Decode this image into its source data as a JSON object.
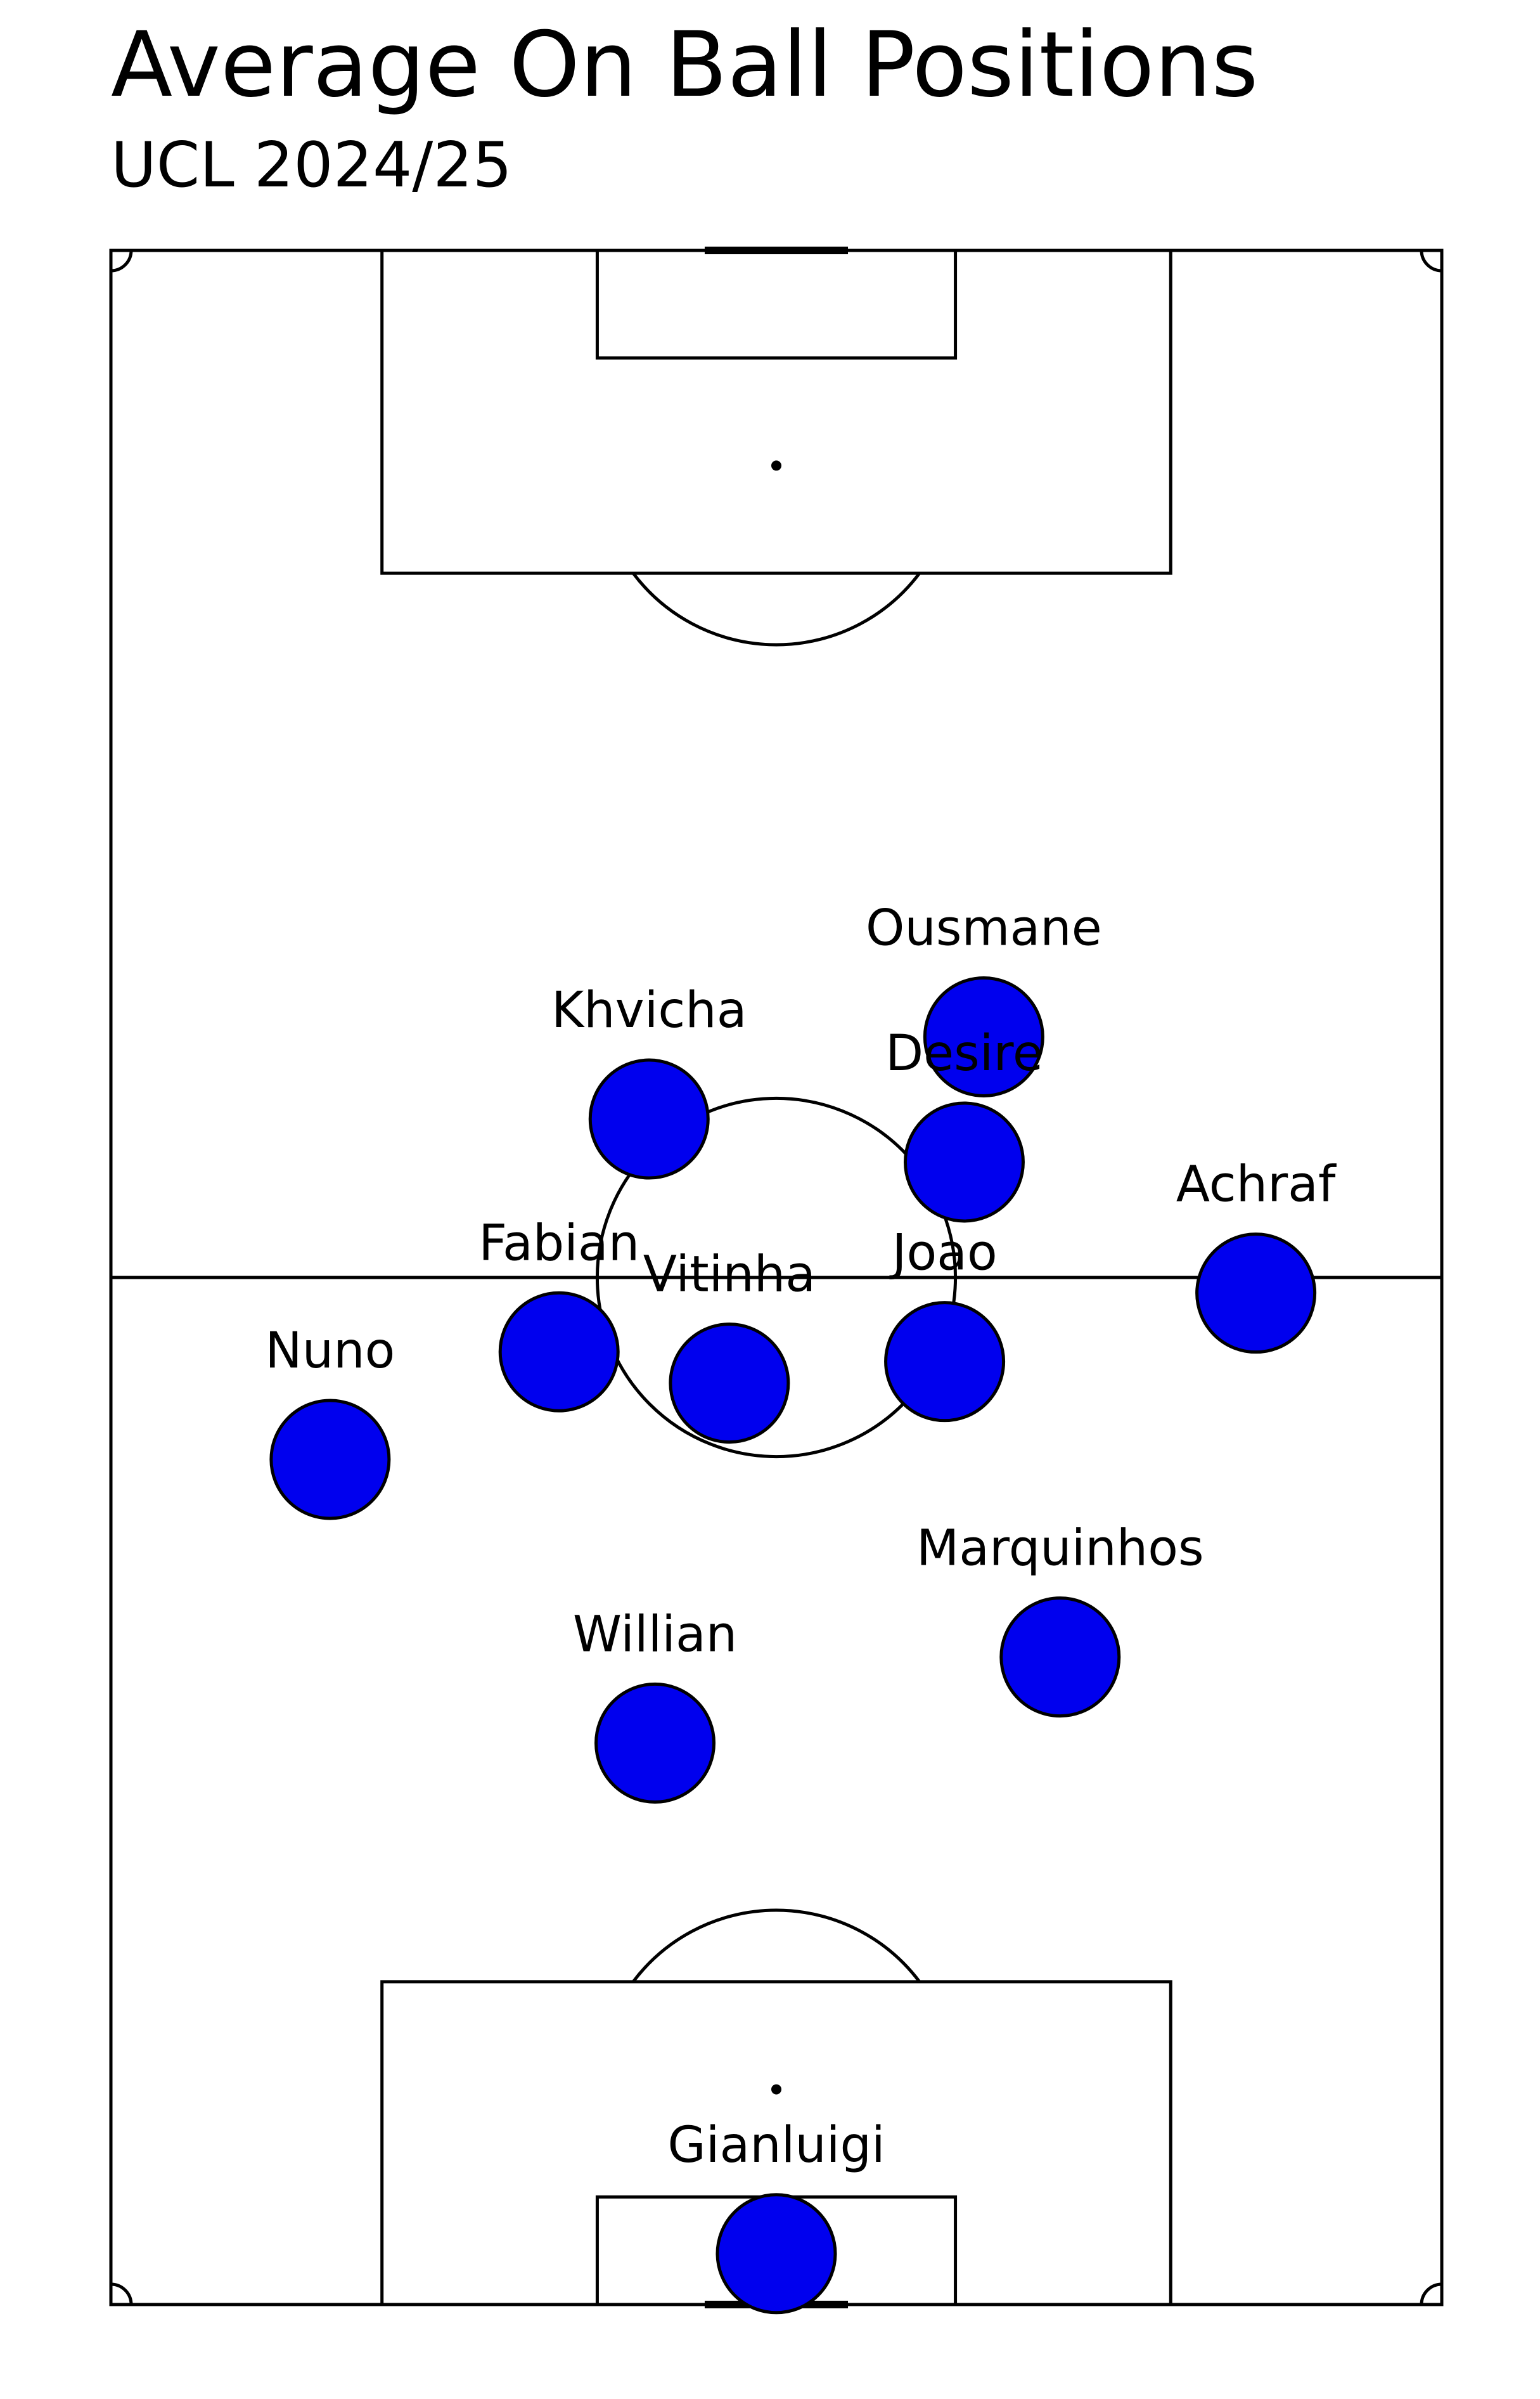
{
  "header": {
    "title": "Average On Ball Positions",
    "subtitle": "UCL 2024/25"
  },
  "chart_data": {
    "type": "scatter",
    "title": "Average On Ball Positions",
    "subtitle": "UCL 2024/25",
    "pitch": {
      "length": 105,
      "width": 68,
      "orientation": "vertical",
      "attacking_direction": "up"
    },
    "xlabel": "",
    "ylabel": "",
    "xlim": [
      0,
      68
    ],
    "ylim": [
      0,
      105
    ],
    "grid": false,
    "colors": {
      "marker_fill": "#0000ee",
      "marker_edge": "#000000",
      "line": "#000000",
      "background": "#ffffff"
    },
    "players": [
      {
        "name": "Ousmane",
        "x": 44.6,
        "y": 64.8
      },
      {
        "name": "Khvicha",
        "x": 27.5,
        "y": 60.6
      },
      {
        "name": "Desire",
        "x": 43.6,
        "y": 58.4
      },
      {
        "name": "Achraf",
        "x": 58.5,
        "y": 51.7
      },
      {
        "name": "Fabian",
        "x": 22.9,
        "y": 48.7
      },
      {
        "name": "Vitinha",
        "x": 31.6,
        "y": 47.1
      },
      {
        "name": "Joao",
        "x": 42.6,
        "y": 48.2
      },
      {
        "name": "Nuno",
        "x": 11.2,
        "y": 43.2
      },
      {
        "name": "Marquinhos",
        "x": 48.5,
        "y": 33.1
      },
      {
        "name": "Willian",
        "x": 27.8,
        "y": 28.7
      },
      {
        "name": "Gianluigi",
        "x": 34.0,
        "y": 2.6
      }
    ]
  }
}
